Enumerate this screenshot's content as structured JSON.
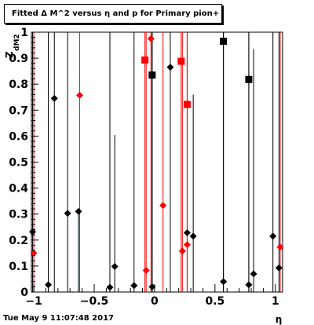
{
  "title": "Fitted Δ M^2 versus η and p for Primary pion+",
  "timestamp": "Tue May  9 11:07:48 2017",
  "chart_data": {
    "type": "scatter",
    "title": "Fitted Δ M^2 versus η and p for Primary pion+",
    "xlabel": "η",
    "ylabel": "Z dM2",
    "ylabel_main": "Z",
    "ylabel_sub": "dM2",
    "xlim": [
      -1.02,
      1.06
    ],
    "ylim": [
      0,
      1
    ],
    "xticks": [
      -1,
      -0.5,
      0,
      0.5,
      1
    ],
    "xtick_labels": [
      "−1",
      "−0.5",
      "0",
      "0.5",
      "1"
    ],
    "yticks": [
      0,
      0.1,
      0.2,
      0.3,
      0.4,
      0.5,
      0.6,
      0.7,
      0.8,
      0.9,
      1
    ],
    "ytick_labels": [
      "0",
      "0.1",
      "0.2",
      "0.3",
      "0.4",
      "0.5",
      "0.6",
      "0.7",
      "0.8",
      "0.9",
      "1"
    ],
    "grid": false,
    "legend": false,
    "series": [
      {
        "color": "#000000",
        "marker": "diamond",
        "points": [
          {
            "x": -1.01,
            "y": 0.232,
            "err_lo": 0.232,
            "err_hi": 0.768
          },
          {
            "x": -0.88,
            "y": 0.028,
            "err_lo": 0.028,
            "err_hi": 0.972
          },
          {
            "x": -0.83,
            "y": 0.745,
            "err_lo": 0.745,
            "err_hi": 0.255
          },
          {
            "x": -0.72,
            "y": 0.303,
            "err_lo": 0.303,
            "err_hi": 0.697
          },
          {
            "x": -0.63,
            "y": 0.31,
            "err_lo": 0.31,
            "err_hi": 0
          },
          {
            "x": -0.37,
            "y": 0.018,
            "err_lo": 0.018,
            "err_hi": 0.982
          },
          {
            "x": -0.33,
            "y": 0.098,
            "err_lo": 0.098,
            "err_hi": 0.506
          },
          {
            "x": -0.17,
            "y": 0.025,
            "err_lo": 0.025,
            "err_hi": 0.975
          },
          {
            "x": -0.02,
            "y": 0.02,
            "err_lo": 0.02,
            "err_hi": 0.98
          },
          {
            "x": 0.13,
            "y": 0.865,
            "err_lo": 0.865,
            "err_hi": 0.135
          },
          {
            "x": 0.27,
            "y": 0.228,
            "err_lo": 0.228,
            "err_hi": 0.772
          },
          {
            "x": 0.32,
            "y": 0.215,
            "err_lo": 0.215,
            "err_hi": 0.545
          },
          {
            "x": 0.57,
            "y": 0.04,
            "err_lo": 0.04,
            "err_hi": 0.96
          },
          {
            "x": 0.78,
            "y": 0.028,
            "err_lo": 0.028,
            "err_hi": 0.972
          },
          {
            "x": 0.82,
            "y": 0.07,
            "err_lo": 0.07,
            "err_hi": 0.865
          },
          {
            "x": 0.98,
            "y": 0.215,
            "err_lo": 0.215,
            "err_hi": 0.785
          },
          {
            "x": 1.03,
            "y": 0.093,
            "err_lo": 0.093,
            "err_hi": 0.907
          }
        ]
      },
      {
        "color": "#000000",
        "marker": "square",
        "points": [
          {
            "x": -0.02,
            "y": 0.835,
            "err_lo": 0.835,
            "err_hi": 0.165
          },
          {
            "x": 0.57,
            "y": 0.965,
            "err_lo": 0.965,
            "err_hi": 0.035
          },
          {
            "x": 0.78,
            "y": 0.818,
            "err_lo": 0.818,
            "err_hi": 0.182
          }
        ]
      },
      {
        "color": "#ff0000",
        "marker": "diamond",
        "points": [
          {
            "x": -1.0,
            "y": 0.15,
            "err_lo": 0.15,
            "err_hi": 0.85
          },
          {
            "x": -0.62,
            "y": 0.757,
            "err_lo": 0.757,
            "err_hi": 0.243
          },
          {
            "x": -0.07,
            "y": 0.083,
            "err_lo": 0.083,
            "err_hi": 0.917
          },
          {
            "x": -0.03,
            "y": 0.975,
            "err_lo": 0.975,
            "err_hi": 0.025
          },
          {
            "x": 0.07,
            "y": 0.333,
            "err_lo": 0.333,
            "err_hi": 0.667
          },
          {
            "x": 0.23,
            "y": 0.158,
            "err_lo": 0.158,
            "err_hi": 0.842
          },
          {
            "x": 0.27,
            "y": 0.182,
            "err_lo": 0.182,
            "err_hi": 0.818
          },
          {
            "x": 1.04,
            "y": 0.173,
            "err_lo": 0.173,
            "err_hi": 0.827
          }
        ]
      },
      {
        "color": "#ff0000",
        "marker": "square",
        "points": [
          {
            "x": -0.08,
            "y": 0.893,
            "err_lo": 0.893,
            "err_hi": 0.107
          },
          {
            "x": 0.22,
            "y": 0.888,
            "err_lo": 0.888,
            "err_hi": 0.112
          },
          {
            "x": 0.27,
            "y": 0.722,
            "err_lo": 0.722,
            "err_hi": 0.278
          }
        ]
      }
    ]
  }
}
